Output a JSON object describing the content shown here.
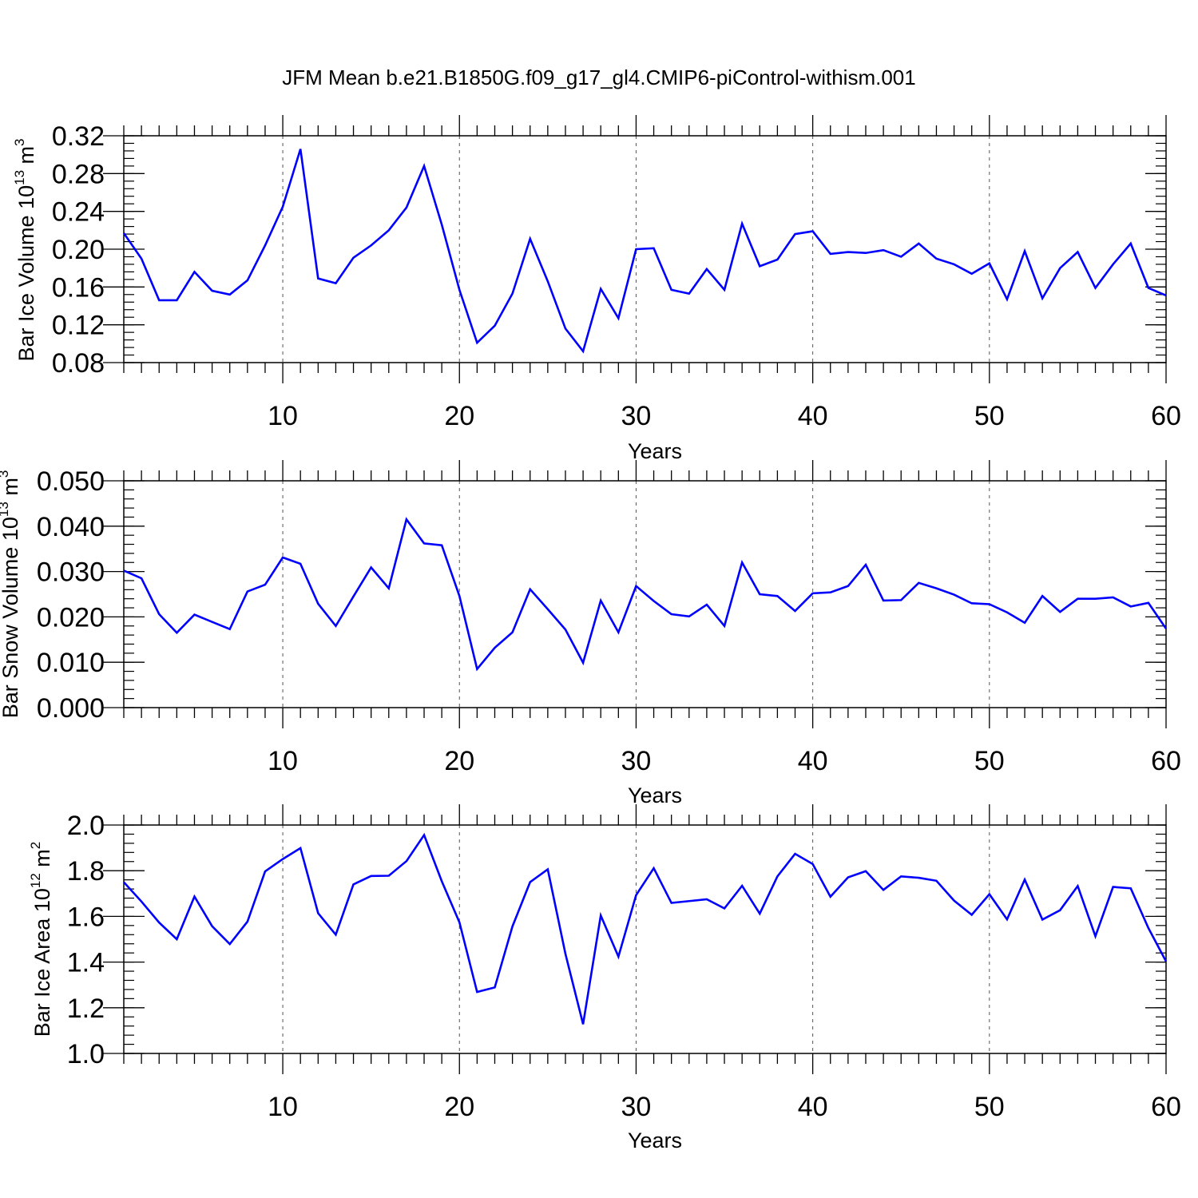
{
  "title": "JFM Mean b.e21.B1850G.f09_g17_gl4.CMIP6-piControl-withism.001",
  "chart_data": [
    {
      "type": "line",
      "ylabel": "Bar Ice Volume",
      "ylabel_factor": "10",
      "ylabel_exp": "13",
      "ylabel_unit": "m",
      "ylabel_unit_exp": "3",
      "xlabel": "Years",
      "xlim": [
        1,
        60
      ],
      "ylim": [
        0.08,
        0.32
      ],
      "x_ticks": [
        10,
        20,
        30,
        40,
        50,
        60
      ],
      "x_tick_labels": [
        "10",
        "20",
        "30",
        "40",
        "50",
        "60"
      ],
      "y_ticks": [
        0.08,
        0.12,
        0.16,
        0.2,
        0.24,
        0.28,
        0.32
      ],
      "y_tick_labels": [
        "0.08",
        "0.12",
        "0.16",
        "0.20",
        "0.24",
        "0.28",
        "0.32"
      ],
      "y_minor_step": 0.008,
      "series": [
        {
          "name": "Bar Ice Volume",
          "color": "#0000ff",
          "x": [
            1,
            2,
            3,
            4,
            5,
            6,
            7,
            8,
            9,
            10,
            11,
            12,
            13,
            14,
            15,
            16,
            17,
            18,
            19,
            20,
            21,
            22,
            23,
            24,
            25,
            26,
            27,
            28,
            29,
            30,
            31,
            32,
            33,
            34,
            35,
            36,
            37,
            38,
            39,
            40,
            41,
            42,
            43,
            44,
            45,
            46,
            47,
            48,
            49,
            50,
            51,
            52,
            53,
            54,
            55,
            56,
            57,
            58,
            59,
            60
          ],
          "values": [
            0.217,
            0.19,
            0.146,
            0.146,
            0.176,
            0.156,
            0.152,
            0.167,
            0.204,
            0.245,
            0.306,
            0.169,
            0.164,
            0.191,
            0.204,
            0.22,
            0.244,
            0.288,
            0.226,
            0.157,
            0.101,
            0.119,
            0.153,
            0.211,
            0.166,
            0.116,
            0.092,
            0.158,
            0.127,
            0.2,
            0.201,
            0.157,
            0.153,
            0.179,
            0.157,
            0.227,
            0.182,
            0.189,
            0.216,
            0.219,
            0.195,
            0.197,
            0.196,
            0.199,
            0.192,
            0.206,
            0.19,
            0.184,
            0.174,
            0.185,
            0.147,
            0.198,
            0.148,
            0.18,
            0.197,
            0.159,
            0.184,
            0.206,
            0.159,
            0.151
          ]
        }
      ]
    },
    {
      "type": "line",
      "ylabel": "Bar Snow Volume",
      "ylabel_factor": "10",
      "ylabel_exp": "13",
      "ylabel_unit": "m",
      "ylabel_unit_exp": "3",
      "xlabel": "Years",
      "xlim": [
        1,
        60
      ],
      "ylim": [
        0.0,
        0.05
      ],
      "x_ticks": [
        10,
        20,
        30,
        40,
        50,
        60
      ],
      "x_tick_labels": [
        "10",
        "20",
        "30",
        "40",
        "50",
        "60"
      ],
      "y_ticks": [
        0.0,
        0.01,
        0.02,
        0.03,
        0.04,
        0.05
      ],
      "y_tick_labels": [
        "0.000",
        "0.010",
        "0.020",
        "0.030",
        "0.040",
        "0.050"
      ],
      "y_minor_step": 0.002,
      "series": [
        {
          "name": "Bar Snow Volume",
          "color": "#0000ff",
          "x": [
            1,
            2,
            3,
            4,
            5,
            6,
            7,
            8,
            9,
            10,
            11,
            12,
            13,
            14,
            15,
            16,
            17,
            18,
            19,
            20,
            21,
            22,
            23,
            24,
            25,
            26,
            27,
            28,
            29,
            30,
            31,
            32,
            33,
            34,
            35,
            36,
            37,
            38,
            39,
            40,
            41,
            42,
            43,
            44,
            45,
            46,
            47,
            48,
            49,
            50,
            51,
            52,
            53,
            54,
            55,
            56,
            57,
            58,
            59,
            60
          ],
          "values": [
            0.0302,
            0.0285,
            0.0206,
            0.0165,
            0.0205,
            0.0189,
            0.0173,
            0.0256,
            0.0271,
            0.0331,
            0.0317,
            0.0229,
            0.018,
            0.0245,
            0.0309,
            0.0263,
            0.0415,
            0.0362,
            0.0358,
            0.0246,
            0.0085,
            0.0132,
            0.0166,
            0.0261,
            0.0217,
            0.0172,
            0.0099,
            0.0236,
            0.0166,
            0.0268,
            0.0235,
            0.0206,
            0.0201,
            0.0227,
            0.018,
            0.032,
            0.025,
            0.0246,
            0.0213,
            0.0252,
            0.0254,
            0.0268,
            0.0315,
            0.0236,
            0.0237,
            0.0275,
            0.0263,
            0.0249,
            0.023,
            0.0228,
            0.021,
            0.0187,
            0.0246,
            0.0211,
            0.024,
            0.024,
            0.0243,
            0.0223,
            0.0231,
            0.0174
          ]
        }
      ]
    },
    {
      "type": "line",
      "ylabel": "Bar Ice Area",
      "ylabel_factor": "10",
      "ylabel_exp": "12",
      "ylabel_unit": "m",
      "ylabel_unit_exp": "2",
      "xlabel": "Years",
      "xlim": [
        1,
        60
      ],
      "ylim": [
        1.0,
        2.0
      ],
      "x_ticks": [
        10,
        20,
        30,
        40,
        50,
        60
      ],
      "x_tick_labels": [
        "10",
        "20",
        "30",
        "40",
        "50",
        "60"
      ],
      "y_ticks": [
        1.0,
        1.2,
        1.4,
        1.6,
        1.8,
        2.0
      ],
      "y_tick_labels": [
        "1.0",
        "1.2",
        "1.4",
        "1.6",
        "1.8",
        "2.0"
      ],
      "y_minor_step": 0.04,
      "series": [
        {
          "name": "Bar Ice Area",
          "color": "#0000ff",
          "x": [
            1,
            2,
            3,
            4,
            5,
            6,
            7,
            8,
            9,
            10,
            11,
            12,
            13,
            14,
            15,
            16,
            17,
            18,
            19,
            20,
            21,
            22,
            23,
            24,
            25,
            26,
            27,
            28,
            29,
            30,
            31,
            32,
            33,
            34,
            35,
            36,
            37,
            38,
            39,
            40,
            41,
            42,
            43,
            44,
            45,
            46,
            47,
            48,
            49,
            50,
            51,
            52,
            53,
            54,
            55,
            56,
            57,
            58,
            59,
            60
          ],
          "values": [
            1.75,
            1.665,
            1.573,
            1.5,
            1.687,
            1.557,
            1.479,
            1.577,
            1.797,
            1.851,
            1.899,
            1.614,
            1.52,
            1.74,
            1.777,
            1.778,
            1.842,
            1.956,
            1.754,
            1.574,
            1.269,
            1.289,
            1.556,
            1.75,
            1.806,
            1.436,
            1.128,
            1.604,
            1.424,
            1.693,
            1.811,
            1.659,
            1.667,
            1.675,
            1.635,
            1.734,
            1.612,
            1.775,
            1.874,
            1.829,
            1.686,
            1.771,
            1.798,
            1.716,
            1.775,
            1.769,
            1.756,
            1.669,
            1.607,
            1.697,
            1.587,
            1.761,
            1.586,
            1.627,
            1.733,
            1.513,
            1.729,
            1.723,
            1.549,
            1.403
          ]
        }
      ]
    }
  ]
}
